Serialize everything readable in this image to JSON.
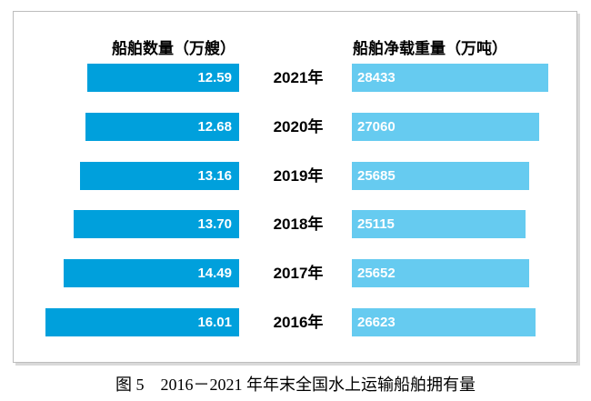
{
  "chart_data": {
    "type": "bar",
    "orientation": "horizontal",
    "layout_hint": "tornado/butterfly chart, year labels centered between two bar columns, value labels inside bars, no axes or gridlines",
    "categories": [
      "2021年",
      "2020年",
      "2019年",
      "2018年",
      "2017年",
      "2016年"
    ],
    "series": [
      {
        "name": "船舶数量（万艘）",
        "values": [
          12.59,
          12.68,
          13.16,
          13.7,
          14.49,
          16.01
        ],
        "labels": [
          "12.59",
          "12.68",
          "13.16",
          "13.70",
          "14.49",
          "16.01"
        ],
        "bar_color": "#00A0DC",
        "alignment": "right-aligned bars growing left"
      },
      {
        "name": "船舶净载重量（万吨）",
        "values": [
          28433,
          27060,
          25685,
          25115,
          25652,
          26623
        ],
        "labels": [
          "28433",
          "27060",
          "25685",
          "25115",
          "25652",
          "26623"
        ],
        "bar_color": "#66CBF0",
        "alignment": "left-aligned bars growing right"
      }
    ],
    "value_label_color": "#ffffff",
    "caption": "图 5　2016－2021 年年末全国水上运输船舶拥有量"
  }
}
